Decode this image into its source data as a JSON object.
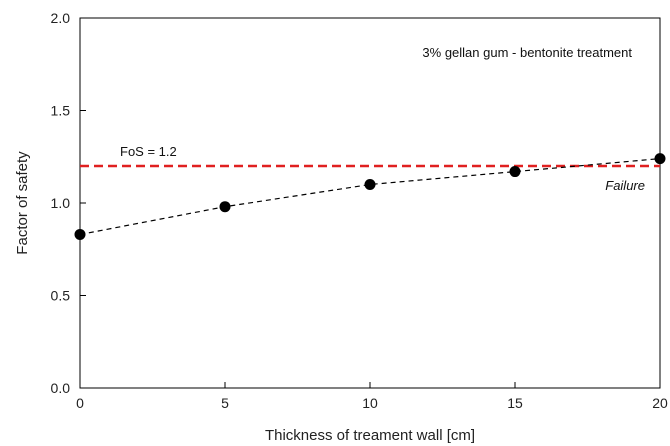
{
  "chart_data": {
    "type": "scatter",
    "title": "",
    "xlabel": "Thickness of treament wall  [cm]",
    "ylabel": "Factor of safety",
    "xlim": [
      0,
      20
    ],
    "ylim": [
      0,
      2.0
    ],
    "x_ticks": [
      0,
      5,
      10,
      15,
      20
    ],
    "x_tick_labels": [
      "0",
      "5",
      "10",
      "15",
      "20"
    ],
    "y_ticks": [
      0,
      0.5,
      1.0,
      1.5,
      2.0
    ],
    "y_tick_labels": [
      "0.0",
      "0.5",
      "1.0",
      "1.5",
      "2.0"
    ],
    "grid": false,
    "series": [
      {
        "x": [
          0,
          5,
          10,
          15,
          20
        ],
        "y": [
          0.83,
          0.98,
          1.1,
          1.17,
          1.24
        ],
        "color": "#000000",
        "marker": "circle",
        "trendline": "dashed"
      }
    ],
    "reference_line": {
      "y": 1.2,
      "label": "FoS = 1.2",
      "color": "#e02020",
      "style": "dashed"
    },
    "annotations": {
      "treatment": "3% gellan gum - bentonite treatment",
      "failure": "Failure"
    }
  }
}
